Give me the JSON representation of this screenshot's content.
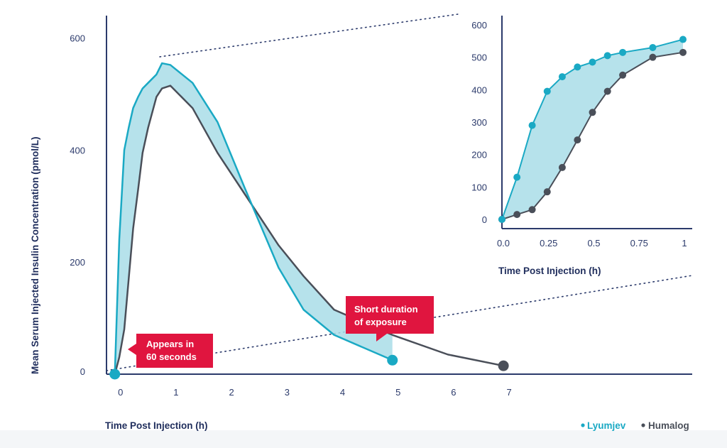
{
  "colors": {
    "lyumjev": "#1aa9c4",
    "humalog": "#4a4f59",
    "fill": "#a9dde8",
    "axis": "#2b3a6b",
    "callout": "#e0153f",
    "dotted": "#2b3a6b"
  },
  "legend": {
    "lyumjev": "Lyumjev",
    "humalog": "Humalog"
  },
  "callouts": {
    "appears": [
      "Appears in",
      "60 seconds"
    ],
    "short": [
      "Short duration",
      "of exposure"
    ]
  },
  "chart_data": [
    {
      "id": "main",
      "type": "line",
      "title": "",
      "xlabel": "Time Post Injection (h)",
      "ylabel": "Mean Serum Injected Insulin Concentration (pmol/L)",
      "xlim": [
        -0.15,
        10.4
      ],
      "ylim": [
        0,
        640
      ],
      "x_ticks": [
        0,
        1,
        2,
        3,
        4,
        5,
        6,
        7
      ],
      "y_ticks": [
        0,
        200,
        400,
        600
      ],
      "grid": false,
      "legend_position": "bottom-right",
      "fill_between": true,
      "series": [
        {
          "name": "Lyumjev",
          "color": "#1aa9c4",
          "x": [
            0,
            0.08,
            0.17,
            0.25,
            0.33,
            0.42,
            0.5,
            0.6,
            0.75,
            0.85,
            1.0,
            1.4,
            1.85,
            2.35,
            2.95,
            3.4,
            3.95,
            5.0
          ],
          "y": [
            0,
            240,
            400,
            440,
            475,
            495,
            510,
            520,
            535,
            555,
            552,
            520,
            450,
            330,
            190,
            115,
            70,
            25
          ]
        },
        {
          "name": "Humalog",
          "color": "#4a4f59",
          "x": [
            0,
            0.08,
            0.17,
            0.25,
            0.33,
            0.42,
            0.5,
            0.6,
            0.75,
            0.85,
            1.0,
            1.4,
            1.85,
            2.35,
            2.95,
            3.4,
            3.95,
            5.0,
            6.0,
            7.0
          ],
          "y": [
            0,
            30,
            80,
            170,
            260,
            330,
            395,
            440,
            495,
            510,
            515,
            475,
            395,
            320,
            230,
            175,
            115,
            70,
            35,
            15
          ]
        }
      ]
    },
    {
      "id": "inset",
      "type": "line",
      "title": "",
      "xlabel": "Time Post Injection (h)",
      "ylabel": "",
      "xlim": [
        0,
        1
      ],
      "ylim": [
        0,
        600
      ],
      "x_ticks": [
        0,
        0.25,
        0.5,
        0.75,
        1
      ],
      "x_tick_labels": [
        "0.0",
        "0.25",
        "0.5",
        "0.75",
        "1"
      ],
      "y_ticks": [
        0,
        100,
        200,
        300,
        400,
        500,
        600
      ],
      "grid": false,
      "fill_between": true,
      "series": [
        {
          "name": "Lyumjev",
          "color": "#1aa9c4",
          "x": [
            0,
            0.083,
            0.167,
            0.25,
            0.333,
            0.417,
            0.5,
            0.583,
            0.667,
            0.833,
            1.0
          ],
          "y": [
            0,
            130,
            290,
            395,
            440,
            470,
            485,
            505,
            515,
            530,
            555
          ]
        },
        {
          "name": "Humalog",
          "color": "#4a4f59",
          "x": [
            0,
            0.083,
            0.167,
            0.25,
            0.333,
            0.417,
            0.5,
            0.583,
            0.667,
            0.833,
            1.0
          ],
          "y": [
            0,
            15,
            30,
            85,
            160,
            245,
            330,
            395,
            445,
            500,
            515
          ]
        }
      ]
    }
  ]
}
